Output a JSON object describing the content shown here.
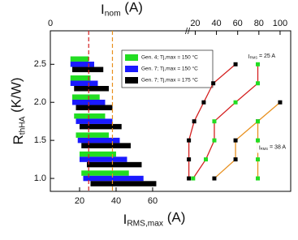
{
  "chart_data": [
    {
      "type": "bar",
      "orientation": "horizontal",
      "y": [
        1.0,
        1.25,
        1.5,
        1.75,
        2.0,
        2.25,
        2.5
      ],
      "xlabel": [
        "I",
        "RMS,max",
        " (A)"
      ],
      "ylabel": [
        "R",
        "thHA",
        " (K/W)"
      ],
      "xlim": [
        4,
        135.6
      ],
      "xticks": [
        20,
        40,
        60
      ],
      "ylim": [
        0.83,
        2.94
      ],
      "yticks": [
        {
          "value": 1.0,
          "label": "1.0"
        },
        {
          "value": 1.5,
          "label": "1.5"
        },
        {
          "value": 2.0,
          "label": "2.0"
        },
        {
          "value": 2.5,
          "label": "2.5"
        }
      ],
      "legend": "upper center",
      "series": [
        {
          "name": "Gen. 4; Tj,max = 150 °C",
          "color": "#22dd22",
          "starts": [
            21,
            20,
            18,
            17,
            16,
            15,
            15
          ],
          "values": [
            47,
            40,
            36,
            34,
            31,
            26,
            25
          ]
        },
        {
          "name": "Gen. 7; Tj,max = 150 °C",
          "color": "#1a1aff",
          "starts": [
            22,
            20,
            19,
            18,
            16,
            15,
            15
          ],
          "values": [
            55,
            46,
            42,
            38,
            34,
            30,
            28
          ]
        },
        {
          "name": "Gen. 7; Tj,max = 175 °C",
          "color": "#000000",
          "starts": [
            26,
            24,
            21,
            20,
            18,
            17,
            16
          ],
          "values": [
            62,
            54,
            48,
            43,
            38,
            36,
            33
          ]
        }
      ],
      "reference_lines": [
        {
          "x": 25,
          "color": "#d42020"
        },
        {
          "x": 38,
          "color": "#e8901e"
        }
      ]
    },
    {
      "type": "line",
      "xlabel": [
        "I",
        "nom",
        " (A)"
      ],
      "xlim": [
        12,
        110
      ],
      "xticks": [
        0,
        20,
        40,
        60,
        80,
        100
      ],
      "series": [
        {
          "color": "#d42020",
          "marker_color": "#000000",
          "x": [
            14,
            14,
            14,
            19,
            28,
            37,
            58
          ],
          "values": [
            1.0,
            1.25,
            1.5,
            1.75,
            2.0,
            2.25,
            2.5
          ]
        },
        {
          "color": "#d42020",
          "marker_color": "#22dd22",
          "x": [
            18,
            30,
            38,
            38,
            58,
            79,
            79
          ],
          "values": [
            1.0,
            1.25,
            1.5,
            1.75,
            2.0,
            2.25,
            2.5
          ]
        },
        {
          "color": "#e8901e",
          "marker_color": "#000000",
          "x": [
            38,
            58,
            58,
            79,
            100
          ],
          "values": [
            1.0,
            1.25,
            1.5,
            1.75,
            2.0
          ]
        },
        {
          "color": "#e8901e",
          "marker_color": "#22dd22",
          "x": [
            79,
            79,
            79,
            79
          ],
          "values": [
            1.0,
            1.25,
            1.5,
            1.75
          ]
        }
      ],
      "annotations": [
        {
          "parts": [
            "I",
            "RMS",
            " = 25 A"
          ],
          "x": 70,
          "y": 2.6
        },
        {
          "parts": [
            "I",
            "RMS",
            " = 38 A"
          ],
          "x": 80,
          "y": 1.4
        }
      ]
    }
  ]
}
